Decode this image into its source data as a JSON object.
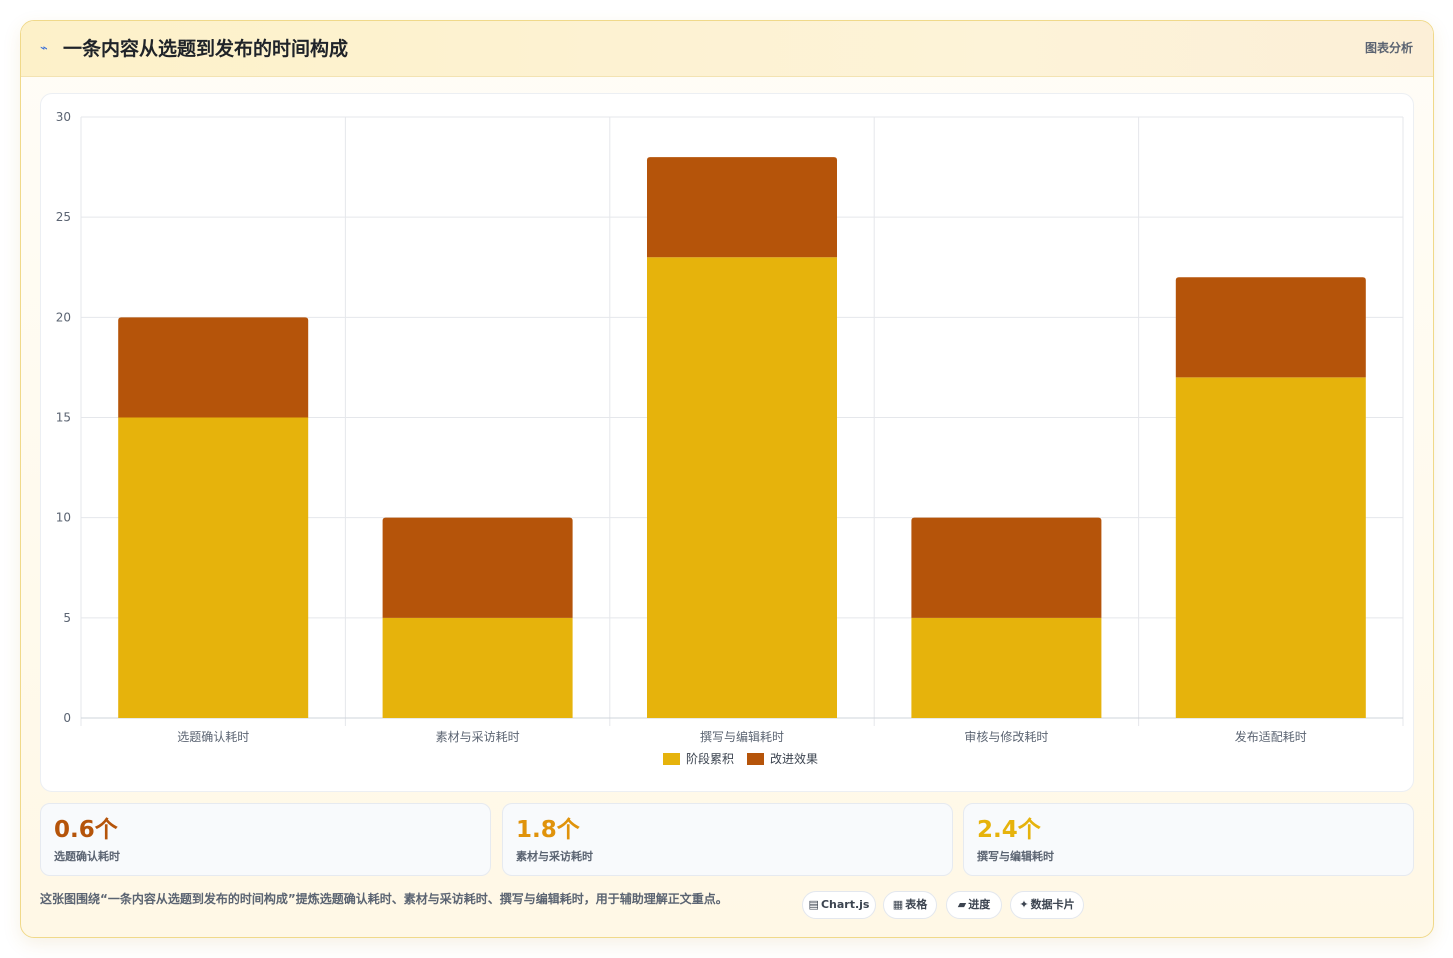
{
  "header": {
    "icon": "lightning-icon",
    "title": "一条内容从选题到发布的时间构成",
    "tag": "图表分析"
  },
  "colors": {
    "series_base": "#E6B30C",
    "series_top": "#B5540A",
    "stat_1": "#B5540A",
    "stat_2": "#E0930B",
    "stat_3": "#E6B30C",
    "grid": "#E5E7EB",
    "tick": "#5b6472"
  },
  "chart_data": {
    "type": "bar",
    "stacked": true,
    "categories": [
      "选题确认耗时",
      "素材与采访耗时",
      "撰写与编辑耗时",
      "审核与修改耗时",
      "发布适配耗时"
    ],
    "series": [
      {
        "name": "阶段累积",
        "values": [
          15,
          5,
          23,
          5,
          17
        ]
      },
      {
        "name": "改进效果",
        "values": [
          5,
          5,
          5,
          5,
          5
        ]
      }
    ],
    "ylim": [
      0,
      30
    ],
    "yticks": [
      "0",
      "5",
      "10",
      "15",
      "20",
      "25",
      "30"
    ],
    "grid": true,
    "legend": "bottom-center"
  },
  "stats": [
    {
      "value": "0.6个",
      "label": "选题确认耗时"
    },
    {
      "value": "1.8个",
      "label": "素材与采访耗时"
    },
    {
      "value": "2.4个",
      "label": "撰写与编辑耗时"
    }
  ],
  "footer": {
    "text": "这张图围绕“一条内容从选题到发布的时间构成”提炼选题确认耗时、素材与采访耗时、撰写与编辑耗时，用于辅助理解正文重点。",
    "pills": [
      {
        "icon": "▤",
        "label": "Chart.js"
      },
      {
        "icon": "▦",
        "label": "表格"
      },
      {
        "icon": "▰",
        "label": "进度"
      },
      {
        "icon": "✦",
        "label": "数据卡片"
      }
    ]
  }
}
